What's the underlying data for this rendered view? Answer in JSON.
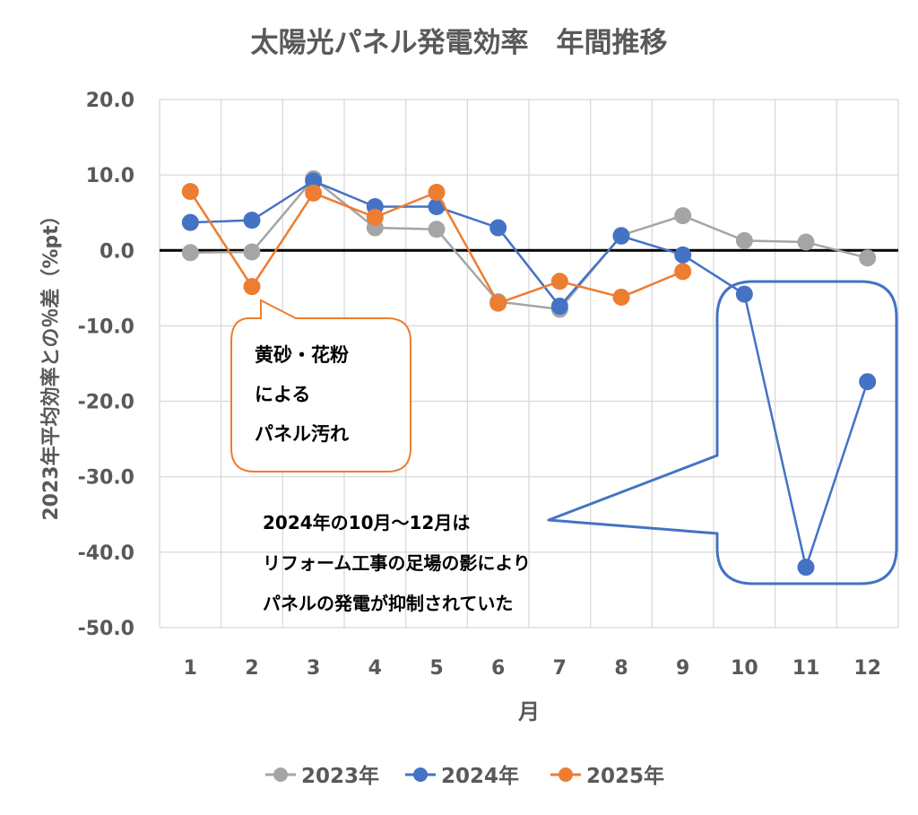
{
  "chart_data": {
    "type": "line",
    "title": "太陽光パネル発電効率　年間推移",
    "xlabel": "月",
    "ylabel": "2023年平均効率との％差（%pt）",
    "categories": [
      "1",
      "2",
      "3",
      "4",
      "5",
      "6",
      "7",
      "8",
      "9",
      "10",
      "11",
      "12"
    ],
    "ylim": [
      -50,
      20
    ],
    "yticks": [
      "20.0",
      "10.0",
      "0.0",
      "-10.0",
      "-20.0",
      "-30.0",
      "-40.0",
      "-50.0"
    ],
    "ytick_values": [
      20,
      10,
      0,
      -10,
      -20,
      -30,
      -40,
      -50
    ],
    "grid": true,
    "legend_position": "bottom",
    "series": [
      {
        "name": "2023年",
        "color": "#a5a5a5",
        "values": [
          -0.3,
          -0.2,
          9.5,
          3.0,
          2.8,
          -6.8,
          -7.8,
          2.0,
          4.6,
          1.3,
          1.1,
          -1.0
        ]
      },
      {
        "name": "2024年",
        "color": "#4472c4",
        "values": [
          3.7,
          4.0,
          9.2,
          5.8,
          5.8,
          3.0,
          -7.4,
          1.9,
          -0.6,
          -5.8,
          -42.0,
          -17.4
        ]
      },
      {
        "name": "2025年",
        "color": "#ed7d31",
        "values": [
          7.8,
          -4.8,
          7.6,
          4.4,
          7.7,
          -7.0,
          -4.1,
          -6.2,
          -2.8,
          null,
          null,
          null
        ]
      }
    ],
    "annotations": [
      {
        "id": "dust",
        "color": "#ed7d31",
        "text_color": "#000000",
        "lines": [
          "黄砂・花粉",
          "による",
          "パネル汚れ"
        ]
      },
      {
        "id": "reform",
        "color": "#4472c4",
        "text_color": "#000000",
        "lines": [
          "2024年の10月～12月は",
          "リフォーム工事の足場の影により",
          "パネルの発電が抑制されていた"
        ]
      }
    ],
    "axis_text_color": "#595959",
    "zero_line_color": "#000000"
  }
}
